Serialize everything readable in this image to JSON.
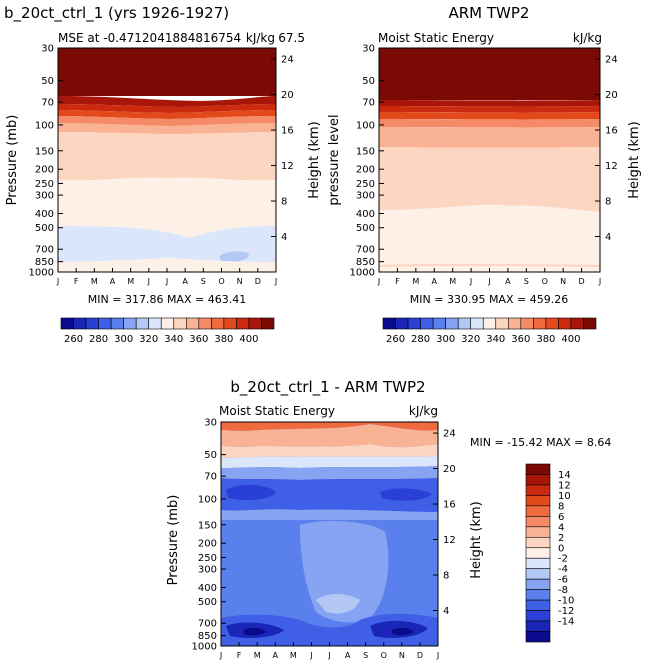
{
  "chart_data": [
    {
      "type": "heatmap",
      "title": "b_20ct_ctrl_1 (yrs 1926-1927)",
      "subtitle_left": "MSE at -0.4712041884816754",
      "subtitle_right": "kJ/kg",
      "subtitle_overlap": "67.5",
      "ylabel": "Pressure (mb)",
      "ylabel_right": "Height (km)",
      "stats": "MIN = 317.86 MAX = 463.41",
      "months": [
        "J",
        "F",
        "M",
        "A",
        "M",
        "J",
        "J",
        "A",
        "S",
        "O",
        "N",
        "D",
        "J"
      ],
      "pressure_ticks": [
        "30",
        "50",
        "70",
        "100",
        "150",
        "200",
        "250",
        "300",
        "400",
        "500",
        "700",
        "850",
        "1000"
      ],
      "height_ticks": [
        "24",
        "20",
        "16",
        "12",
        "8",
        "4"
      ],
      "grid": false,
      "layers_top_to_bottom": [
        {
          "level": "above 400",
          "pressure_range": [
            30,
            58
          ]
        },
        {
          "level": "390-400",
          "pressure_range": [
            58,
            64
          ]
        },
        {
          "level": "380-390",
          "pressure_range": [
            64,
            72
          ]
        },
        {
          "level": "370-380",
          "pressure_range": [
            72,
            80
          ]
        },
        {
          "level": "360-370",
          "pressure_range": [
            80,
            88
          ]
        },
        {
          "level": "350-360",
          "pressure_range": [
            88,
            98
          ]
        },
        {
          "level": "340-350",
          "pressure_range": [
            98,
            210
          ]
        },
        {
          "level": "330-340",
          "pressure_range": [
            210,
            430
          ]
        },
        {
          "level": "320-330",
          "pressure_range": [
            430,
            900
          ]
        },
        {
          "level": "330-340",
          "pressure_range": [
            900,
            1000
          ]
        }
      ]
    },
    {
      "type": "heatmap",
      "title": "ARM TWP2",
      "subtitle_left": "Moist Static Energy",
      "subtitle_right": "kJ/kg",
      "ylabel": "pressure level",
      "ylabel_right": "Height (km)",
      "stats": "MIN = 330.95 MAX = 459.26",
      "months": [
        "J",
        "F",
        "M",
        "A",
        "M",
        "J",
        "J",
        "A",
        "S",
        "O",
        "N",
        "D",
        "J"
      ],
      "pressure_ticks": [
        "30",
        "50",
        "70",
        "100",
        "150",
        "200",
        "250",
        "300",
        "400",
        "500",
        "700",
        "850",
        "1000"
      ],
      "height_ticks": [
        "24",
        "20",
        "16",
        "12",
        "8",
        "4"
      ],
      "grid": false,
      "layers_top_to_bottom": [
        {
          "level": "above 400",
          "pressure_range": [
            30,
            62
          ]
        },
        {
          "level": "390-400",
          "pressure_range": [
            62,
            70
          ]
        },
        {
          "level": "380-390",
          "pressure_range": [
            70,
            78
          ]
        },
        {
          "level": "370-380",
          "pressure_range": [
            78,
            88
          ]
        },
        {
          "level": "360-370",
          "pressure_range": [
            88,
            100
          ]
        },
        {
          "level": "350-360",
          "pressure_range": [
            100,
            125
          ]
        },
        {
          "level": "340-350",
          "pressure_range": [
            125,
            330
          ]
        },
        {
          "level": "330-340",
          "pressure_range": [
            330,
            1000
          ]
        }
      ]
    },
    {
      "type": "heatmap",
      "title": "b_20ct_ctrl_1 - ARM TWP2",
      "subtitle_left": "Moist Static Energy",
      "subtitle_right": "kJ/kg",
      "ylabel": "Pressure (mb)",
      "ylabel_right": "Height (km)",
      "stats": "MIN = -15.42 MAX =    8.64",
      "months": [
        "J",
        "F",
        "M",
        "A",
        "M",
        "J",
        "J",
        "A",
        "S",
        "O",
        "N",
        "D",
        "J"
      ],
      "pressure_ticks": [
        "30",
        "50",
        "70",
        "100",
        "150",
        "200",
        "250",
        "300",
        "400",
        "500",
        "700",
        "850",
        "1000"
      ],
      "height_ticks": [
        "24",
        "20",
        "16",
        "12",
        "8",
        "4"
      ],
      "grid": false,
      "layers_top_to_bottom": [
        {
          "level": "4-6",
          "pressure_range": [
            30,
            34
          ]
        },
        {
          "level": "2-4",
          "pressure_range": [
            34,
            40
          ]
        },
        {
          "level": "0-2",
          "pressure_range": [
            40,
            50
          ]
        },
        {
          "level": "-2-0",
          "pressure_range": [
            50,
            60
          ]
        },
        {
          "level": "-6--4",
          "pressure_range": [
            60,
            70
          ]
        },
        {
          "level": "-10--6",
          "pressure_range": [
            70,
            100
          ]
        },
        {
          "level": "-4--2",
          "pressure_range": [
            100,
            150
          ]
        },
        {
          "level": "-6--4",
          "pressure_range": [
            150,
            700
          ]
        },
        {
          "level": "-10--6",
          "pressure_range": [
            700,
            1000
          ]
        }
      ]
    }
  ],
  "colorbars": [
    {
      "orientation": "horizontal",
      "labels": [
        "260",
        "280",
        "300",
        "320",
        "340",
        "360",
        "380",
        "400"
      ],
      "colors": [
        "#0a0a8c",
        "#1a26b8",
        "#2a3fd6",
        "#3f5fe6",
        "#5a80ee",
        "#86a4f2",
        "#b4c8f6",
        "#dce6fa",
        "#fdf0e6",
        "#fcd6c0",
        "#f9b294",
        "#f58a66",
        "#ef6a3c",
        "#e24a1c",
        "#cc2a0e",
        "#a8160a",
        "#7c0a04"
      ]
    },
    {
      "orientation": "horizontal",
      "labels": [
        "260",
        "280",
        "300",
        "320",
        "340",
        "360",
        "380",
        "400"
      ],
      "colors": [
        "#0a0a8c",
        "#1a26b8",
        "#2a3fd6",
        "#3f5fe6",
        "#5a80ee",
        "#86a4f2",
        "#b4c8f6",
        "#dce6fa",
        "#fdf0e6",
        "#fcd6c0",
        "#f9b294",
        "#f58a66",
        "#ef6a3c",
        "#e24a1c",
        "#cc2a0e",
        "#a8160a",
        "#7c0a04"
      ]
    },
    {
      "orientation": "vertical",
      "labels": [
        "14",
        "12",
        "10",
        "8",
        "6",
        "4",
        "2",
        "0",
        "-2",
        "-4",
        "-6",
        "-8",
        "-10",
        "-12",
        "-14"
      ],
      "colors": [
        "#7c0a04",
        "#a8160a",
        "#cc2a0e",
        "#e24a1c",
        "#ef6a3c",
        "#f58a66",
        "#f9b294",
        "#fcd6c0",
        "#fdf0e6",
        "#dce6fa",
        "#b4c8f6",
        "#86a4f2",
        "#5a80ee",
        "#3f5fe6",
        "#2a3fd6",
        "#1a26b8",
        "#0a0a8c"
      ]
    }
  ]
}
